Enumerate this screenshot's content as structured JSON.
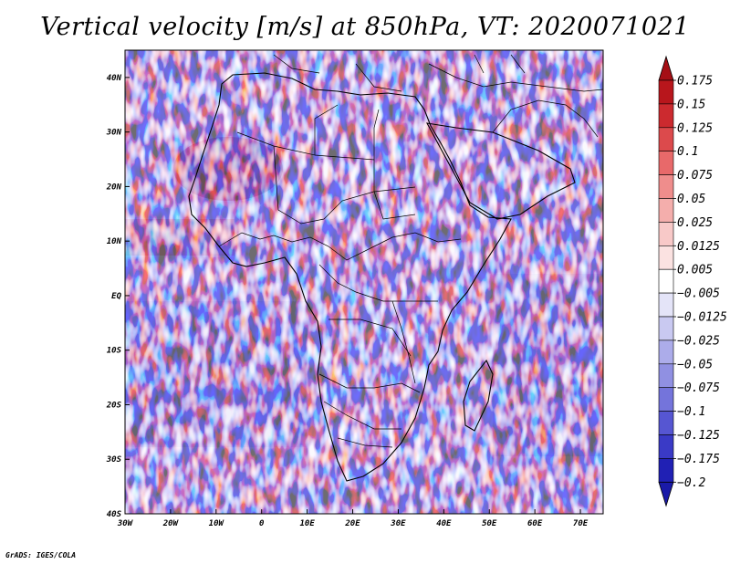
{
  "title": "Vertical velocity [m/s] at 850hPa, VT: 2020071021",
  "credit": "GrADS: IGES/COLA",
  "map": {
    "lon_range": [
      -30,
      75
    ],
    "lat_range": [
      -40,
      45
    ],
    "lon_ticks": [
      {
        "lon": -30,
        "label": "30W"
      },
      {
        "lon": -20,
        "label": "20W"
      },
      {
        "lon": -10,
        "label": "10W"
      },
      {
        "lon": 0,
        "label": "0"
      },
      {
        "lon": 10,
        "label": "10E"
      },
      {
        "lon": 20,
        "label": "20E"
      },
      {
        "lon": 30,
        "label": "30E"
      },
      {
        "lon": 40,
        "label": "40E"
      },
      {
        "lon": 50,
        "label": "50E"
      },
      {
        "lon": 60,
        "label": "60E"
      },
      {
        "lon": 70,
        "label": "70E"
      }
    ],
    "lat_ticks": [
      {
        "lat": 40,
        "label": "40N"
      },
      {
        "lat": 30,
        "label": "30N"
      },
      {
        "lat": 20,
        "label": "20N"
      },
      {
        "lat": 10,
        "label": "10N"
      },
      {
        "lat": 0,
        "label": "EQ"
      },
      {
        "lat": -10,
        "label": "10S"
      },
      {
        "lat": -20,
        "label": "20S"
      },
      {
        "lat": -30,
        "label": "30S"
      },
      {
        "lat": -40,
        "label": "40S"
      }
    ]
  },
  "colorbar": {
    "labels": [
      "0.175",
      "0.15",
      "0.125",
      "0.1",
      "0.075",
      "0.05",
      "0.025",
      "0.0125",
      "0.005",
      "−0.005",
      "−0.0125",
      "−0.025",
      "−0.05",
      "−0.075",
      "−0.1",
      "−0.125",
      "−0.175",
      "−0.2"
    ],
    "colors": [
      "#b8161c",
      "#cc2a2f",
      "#dc4a4c",
      "#e8696a",
      "#ef8d8c",
      "#f4aeac",
      "#f8c9c8",
      "#fbe2e1",
      "#ffffff",
      "#e4e4f8",
      "#c9c9f1",
      "#acacea",
      "#9090e2",
      "#7474db",
      "#5656d2",
      "#3a3ac6",
      "#2020b4"
    ],
    "top_arrow_color": "#a50f15",
    "bottom_arrow_color": "#1a1aa8"
  }
}
